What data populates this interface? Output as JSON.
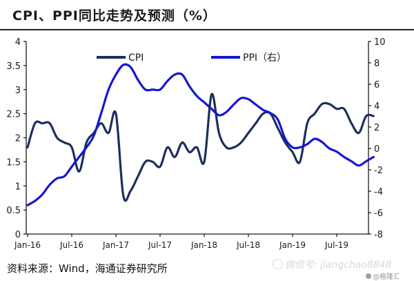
{
  "title": "CPI、PPI同比走势及预测（%）",
  "source": "资料来源：Wind，海通证券研究所",
  "watermark": {
    "wechat": "微信号: jiangchao8848",
    "logo": "@格隆汇"
  },
  "chart_data": {
    "type": "line",
    "title": "CPI、PPI同比走势及预测（%）",
    "x_tick_labels": [
      "Jan-16",
      "Jul-16",
      "Jan-17",
      "Jul-17",
      "Jan-18",
      "Jul-18",
      "Jan-19",
      "Jul-19"
    ],
    "y_left": {
      "ylim": [
        0,
        4
      ],
      "ticks": [
        0,
        0.5,
        1,
        1.5,
        2,
        2.5,
        3,
        3.5,
        4
      ]
    },
    "y_right": {
      "ylim": [
        -8,
        10
      ],
      "ticks": [
        -8,
        -6,
        -4,
        -2,
        0,
        2,
        4,
        6,
        8,
        10
      ]
    },
    "legend_position": "top-center",
    "series": [
      {
        "name": "CPI",
        "axis": "left",
        "color": "#1c2f5c",
        "x": [
          "2016-01",
          "2016-02",
          "2016-03",
          "2016-04",
          "2016-05",
          "2016-06",
          "2016-07",
          "2016-08",
          "2016-09",
          "2016-10",
          "2016-11",
          "2016-12",
          "2017-01",
          "2017-02",
          "2017-03",
          "2017-04",
          "2017-05",
          "2017-06",
          "2017-07",
          "2017-08",
          "2017-09",
          "2017-10",
          "2017-11",
          "2017-12",
          "2018-01",
          "2018-02",
          "2018-03",
          "2018-04",
          "2018-05",
          "2018-06",
          "2018-07",
          "2018-08",
          "2018-09",
          "2018-10",
          "2018-11",
          "2018-12",
          "2019-01",
          "2019-02",
          "2019-03",
          "2019-04",
          "2019-05",
          "2019-06",
          "2019-07",
          "2019-08",
          "2019-09",
          "2019-10",
          "2019-11",
          "2019-12"
        ],
        "values": [
          1.8,
          2.3,
          2.3,
          2.3,
          2.0,
          1.9,
          1.8,
          1.3,
          1.9,
          2.1,
          2.3,
          2.1,
          2.5,
          0.8,
          0.9,
          1.2,
          1.5,
          1.5,
          1.4,
          1.8,
          1.6,
          1.9,
          1.7,
          1.8,
          1.5,
          2.9,
          2.1,
          1.8,
          1.8,
          1.9,
          2.1,
          2.3,
          2.5,
          2.5,
          2.2,
          1.9,
          1.7,
          1.5,
          2.3,
          2.5,
          2.7,
          2.7,
          2.6,
          2.6,
          2.3,
          2.1,
          2.45,
          2.45
        ]
      },
      {
        "name": "PPI（右）",
        "axis": "right",
        "color": "#1515d6",
        "x": [
          "2016-01",
          "2016-02",
          "2016-03",
          "2016-04",
          "2016-05",
          "2016-06",
          "2016-07",
          "2016-08",
          "2016-09",
          "2016-10",
          "2016-11",
          "2016-12",
          "2017-01",
          "2017-02",
          "2017-03",
          "2017-04",
          "2017-05",
          "2017-06",
          "2017-07",
          "2017-08",
          "2017-09",
          "2017-10",
          "2017-11",
          "2017-12",
          "2018-01",
          "2018-02",
          "2018-03",
          "2018-04",
          "2018-05",
          "2018-06",
          "2018-07",
          "2018-08",
          "2018-09",
          "2018-10",
          "2018-11",
          "2018-12",
          "2019-01",
          "2019-02",
          "2019-03",
          "2019-04",
          "2019-05",
          "2019-06",
          "2019-07",
          "2019-08",
          "2019-09",
          "2019-10",
          "2019-11",
          "2019-12"
        ],
        "values": [
          -5.3,
          -4.9,
          -4.3,
          -3.4,
          -2.8,
          -2.6,
          -1.7,
          -0.8,
          0.1,
          1.2,
          3.3,
          5.5,
          6.9,
          7.8,
          7.6,
          6.4,
          5.5,
          5.5,
          5.5,
          6.3,
          6.9,
          6.9,
          5.8,
          4.9,
          4.3,
          3.7,
          3.1,
          3.4,
          4.1,
          4.7,
          4.6,
          4.1,
          3.6,
          3.3,
          2.7,
          0.9,
          0.1,
          0.1,
          0.4,
          0.9,
          0.6,
          0.0,
          -0.3,
          -0.8,
          -1.2,
          -1.6,
          -1.2,
          -0.8
        ]
      }
    ]
  }
}
